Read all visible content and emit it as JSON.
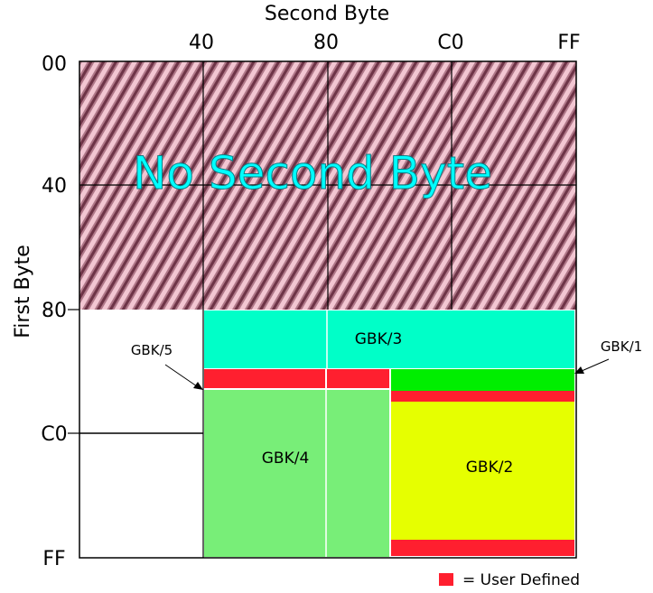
{
  "axes": {
    "x_title": "Second Byte",
    "y_title": "First Byte",
    "x_ticks": [
      "40",
      "80",
      "C0",
      "FF"
    ],
    "y_ticks": [
      "00",
      "40",
      "80",
      "C0",
      "FF"
    ]
  },
  "overlay_label": "No Second Byte",
  "regions": {
    "gbk1": "GBK/1",
    "gbk2": "GBK/2",
    "gbk3": "GBK/3",
    "gbk4": "GBK/4",
    "gbk5": "GBK/5"
  },
  "legend": {
    "label": "= User Defined"
  },
  "colors": {
    "hatch_light": "#f2c6d2",
    "hatch_dark": "#6e3447",
    "gbk1": "#00ee00",
    "gbk2": "#e6ff00",
    "gbk3": "#00ffc8",
    "gbk4": "#78ee78",
    "user_defined": "#ff1f2f",
    "overlay_text": "#00ffff"
  }
}
